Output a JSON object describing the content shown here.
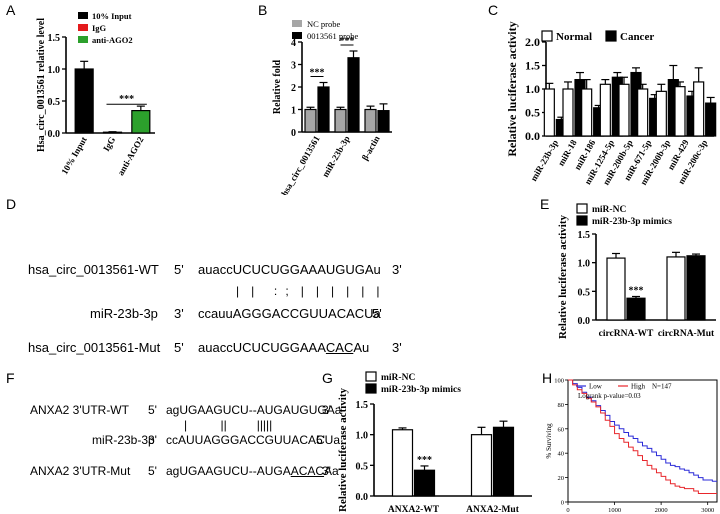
{
  "panel_letters": {
    "A": "A",
    "B": "B",
    "C": "C",
    "D": "D",
    "E": "E",
    "F": "F",
    "G": "G",
    "H": "H"
  },
  "colors": {
    "black": "#000000",
    "red": "#e41a1c",
    "green": "#2ca02c",
    "gray": "#a6a6a6",
    "white": "#ffffff",
    "km_blue": "#2b2bd8",
    "km_red": "#e8262b"
  },
  "chart_data": [
    {
      "panel": "A",
      "type": "bar",
      "ylabel": "Hsa_circ_0013561 relative level",
      "ylim": [
        0,
        1.5
      ],
      "yticks": [
        "0.0",
        "0.5",
        "1.0",
        "1.5"
      ],
      "categories": [
        "10% Input",
        "IgG",
        "anti-AGO2"
      ],
      "values": [
        1.0,
        0.01,
        0.35
      ],
      "errors": [
        0.12,
        0.01,
        0.07
      ],
      "colors": [
        "#000000",
        "#e41a1c",
        "#2ca02c"
      ],
      "legend": [
        "10% Input",
        "IgG",
        "anti-AGO2"
      ],
      "significance": "***"
    },
    {
      "panel": "B",
      "type": "bar",
      "ylabel": "Relative fold",
      "ylim": [
        0,
        4
      ],
      "yticks": [
        "0",
        "1",
        "2",
        "3",
        "4"
      ],
      "categories": [
        "hsa_circ_0013561",
        "miR-23b-3p",
        "β-actin"
      ],
      "series": [
        {
          "name": "NC probe",
          "values": [
            1.0,
            1.0,
            1.0
          ],
          "errors": [
            0.1,
            0.1,
            0.15
          ],
          "color": "#a6a6a6"
        },
        {
          "name": "0013561 probe",
          "values": [
            2.0,
            3.3,
            0.95
          ],
          "errors": [
            0.2,
            0.3,
            0.3
          ],
          "color": "#000000"
        }
      ],
      "significance": [
        "***",
        "***"
      ]
    },
    {
      "panel": "C",
      "type": "bar",
      "ylabel": "Relative luciferase activity",
      "ylim": [
        0,
        2.0
      ],
      "yticks": [
        "0.0",
        "0.5",
        "1.0",
        "1.5",
        "2.0"
      ],
      "categories": [
        "miR-23b-3p",
        "miR-18",
        "miR-186",
        "miR-1254-5p",
        "miR-200b-5p",
        "miR-671-5p",
        "miR-200b-3p",
        "miR-429",
        "miR-200c-3p"
      ],
      "series": [
        {
          "name": "Normal",
          "values": [
            1.0,
            1.0,
            1.0,
            1.1,
            1.1,
            1.0,
            0.95,
            1.05,
            1.15
          ],
          "errors": [
            0.12,
            0.15,
            0.2,
            0.1,
            0.15,
            0.1,
            0.15,
            0.1,
            0.3
          ],
          "color": "#ffffff"
        },
        {
          "name": "Cancer",
          "values": [
            0.35,
            1.2,
            0.6,
            1.25,
            1.35,
            0.8,
            1.2,
            0.85,
            0.7
          ],
          "errors": [
            0.05,
            0.15,
            0.05,
            0.1,
            0.1,
            0.08,
            0.3,
            0.1,
            0.12
          ],
          "color": "#000000"
        }
      ]
    },
    {
      "panel": "E",
      "type": "bar",
      "ylabel": "Relative luciferase activity",
      "ylim": [
        0,
        1.5
      ],
      "yticks": [
        "0.0",
        "0.5",
        "1.0",
        "1.5"
      ],
      "categories": [
        "circRNA-WT",
        "circRNA-Mut"
      ],
      "series": [
        {
          "name": "miR-NC",
          "values": [
            1.08,
            1.1
          ],
          "errors": [
            0.08,
            0.08
          ],
          "color": "#ffffff"
        },
        {
          "name": "miR-23b-3p mimics",
          "values": [
            0.38,
            1.12
          ],
          "errors": [
            0.03,
            0.03
          ],
          "color": "#000000"
        }
      ],
      "significance": "***"
    },
    {
      "panel": "G",
      "type": "bar",
      "ylabel": "Relative luciferase activity",
      "ylim": [
        0,
        1.5
      ],
      "yticks": [
        "0.0",
        "0.5",
        "1.0",
        "1.5"
      ],
      "categories": [
        "ANXA2-WT",
        "ANXA2-Mut"
      ],
      "series": [
        {
          "name": "miR-NC",
          "values": [
            1.08,
            1.0
          ],
          "errors": [
            0.03,
            0.12
          ],
          "color": "#ffffff"
        },
        {
          "name": "miR-23b-3p mimics",
          "values": [
            0.42,
            1.12
          ],
          "errors": [
            0.07,
            0.1
          ],
          "color": "#000000"
        }
      ],
      "significance": "***"
    },
    {
      "panel": "H",
      "type": "line",
      "ylabel": "% Surviving",
      "ylim": [
        0,
        100
      ],
      "xlim": [
        0,
        3200
      ],
      "yticks": [
        "0",
        "20",
        "40",
        "60",
        "80",
        "100"
      ],
      "xticks": [
        "0",
        "1000",
        "2000",
        "3000"
      ],
      "legend_low": "Low",
      "legend_high": "High",
      "legend_n": "N=147",
      "annotation": "Logrank p-value=0.03",
      "series": [
        {
          "name": "Low",
          "color": "#2b2bd8",
          "x": [
            0,
            100,
            200,
            300,
            400,
            500,
            600,
            700,
            800,
            900,
            1000,
            1100,
            1200,
            1300,
            1400,
            1500,
            1600,
            1700,
            1800,
            1900,
            2000,
            2100,
            2200,
            2300,
            2400,
            2500,
            2600,
            2700,
            2800,
            2900,
            3000,
            3100,
            3200
          ],
          "y": [
            100,
            97,
            94,
            90,
            86,
            83,
            79,
            75,
            71,
            66,
            63,
            60,
            57,
            54,
            52,
            49,
            46,
            44,
            41,
            38,
            35,
            32,
            30,
            29,
            27,
            26,
            24,
            22,
            20,
            18,
            18,
            17,
            17
          ]
        },
        {
          "name": "High",
          "color": "#e8262b",
          "x": [
            0,
            100,
            200,
            300,
            400,
            500,
            600,
            700,
            800,
            900,
            1000,
            1100,
            1200,
            1300,
            1400,
            1500,
            1600,
            1700,
            1800,
            1900,
            2000,
            2100,
            2200,
            2300,
            2400,
            2500,
            2600,
            2700,
            2800,
            2900,
            3000,
            3100,
            3200
          ],
          "y": [
            100,
            96,
            92,
            89,
            85,
            82,
            78,
            73,
            67,
            62,
            56,
            52,
            49,
            45,
            42,
            38,
            34,
            30,
            27,
            24,
            21,
            18,
            15,
            13,
            12,
            11,
            11,
            9,
            7,
            7,
            7,
            7,
            7
          ]
        }
      ]
    }
  ],
  "panel_D": {
    "row1_name": "hsa_circ_0013561-WT",
    "row1_5": "5'",
    "row1_pre": "auacc",
    "row1_seq": "UCUCUGGAAAUGUGAu",
    "row1_3": "3'",
    "pairs": "|   |     :  ;   |   |   |   |   |   |",
    "row2_name": "miR-23b-3p",
    "row2_3": "3'",
    "row2_pre": "ccauu",
    "row2_seq": "AGGGACCGUUACACUa",
    "row2_5": "5'",
    "row3_name": "hsa_circ_0013561-Mut",
    "row3_5": "5'",
    "row3_pre": "auacc",
    "row3_seq1": "UCUCUGGAAA",
    "row3_mut": "CAC",
    "row3_seq2": "Au",
    "row3_3": "3'"
  },
  "panel_F": {
    "row1_name": "ANXA2 3'UTR-WT",
    "row1_5": "5'",
    "row1_pre": "ag",
    "row1_seq": "UGAAGUCU--AUGAUGUGAa",
    "row1_3": "3'",
    "pairs": "|          ||         |||||",
    "row2_name": "miR-23b-3p",
    "row2_3": "3'",
    "row2_pre": "cc",
    "row2_seq": "AUUAGGGACCGUUACACUa",
    "row2_5": "5'",
    "row3_name": "ANXA2 3'UTR-Mut",
    "row3_5": "5'",
    "row3_pre": "ag",
    "row3_seq1": "UGAAGUCU--AUGA",
    "row3_mut": "ACAC",
    "row3_seq2": "Aa",
    "row3_3": "3'"
  }
}
